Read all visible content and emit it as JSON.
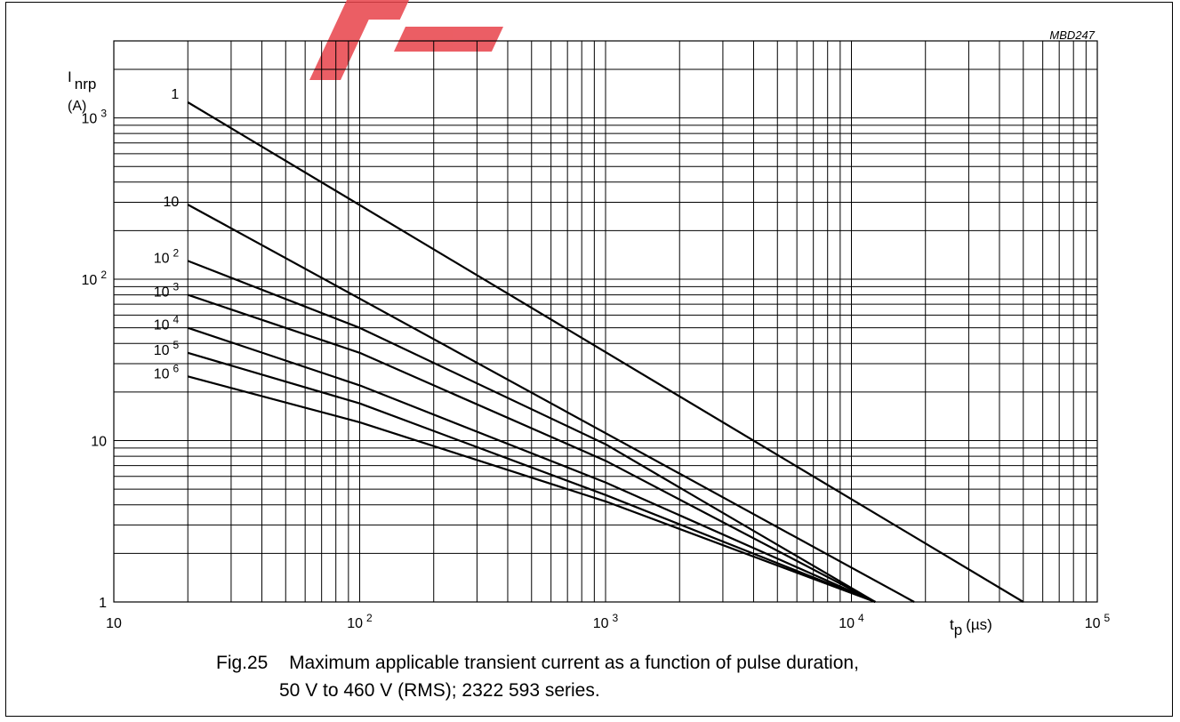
{
  "figure": {
    "code": "MBD247",
    "caption_number": "Fig.25",
    "caption_line1": "Maximum applicable transient current as a function of pulse duration,",
    "caption_line2": "50 V to 460 V (RMS); 2322 593 series."
  },
  "colors": {
    "grid": "#000000",
    "curves": "#000000",
    "watermark": "#e8424a"
  },
  "chart_data": {
    "type": "line",
    "x_scale": "log",
    "y_scale": "log",
    "xlim": [
      10,
      100000
    ],
    "ylim": [
      1,
      3000
    ],
    "grid": true,
    "ylabel": {
      "symbol": "I",
      "subscript": "nrp",
      "unit": "(A)"
    },
    "xlabel": {
      "symbol": "t",
      "subscript": "p",
      "unit": "(µs)"
    },
    "x_ticks": [
      {
        "value": 10,
        "base": "10",
        "exp": ""
      },
      {
        "value": 100,
        "base": "10",
        "exp": "2"
      },
      {
        "value": 1000,
        "base": "10",
        "exp": "3"
      },
      {
        "value": 10000,
        "base": "10",
        "exp": "4"
      },
      {
        "value": 100000,
        "base": "10",
        "exp": "5"
      }
    ],
    "y_ticks": [
      {
        "value": 1,
        "base": "1",
        "exp": ""
      },
      {
        "value": 10,
        "base": "10",
        "exp": ""
      },
      {
        "value": 100,
        "base": "10",
        "exp": "2"
      },
      {
        "value": 1000,
        "base": "10",
        "exp": "3"
      }
    ],
    "series": [
      {
        "name": "1",
        "label_base": "1",
        "label_exp": "",
        "points": [
          [
            20,
            1250
          ],
          [
            50000,
            1
          ]
        ]
      },
      {
        "name": "10",
        "label_base": "10",
        "label_exp": "",
        "points": [
          [
            20,
            290
          ],
          [
            18000,
            1
          ]
        ]
      },
      {
        "name": "10^2",
        "label_base": "10",
        "label_exp": "2",
        "points": [
          [
            20,
            130
          ],
          [
            100,
            50
          ],
          [
            1000,
            9.5
          ],
          [
            12500,
            1
          ]
        ]
      },
      {
        "name": "10^3",
        "label_base": "10",
        "label_exp": "3",
        "points": [
          [
            20,
            80
          ],
          [
            100,
            35
          ],
          [
            1000,
            7.5
          ],
          [
            12500,
            1
          ]
        ]
      },
      {
        "name": "10^4",
        "label_base": "10",
        "label_exp": "4",
        "points": [
          [
            20,
            50
          ],
          [
            100,
            22
          ],
          [
            1000,
            5.5
          ],
          [
            12500,
            1
          ]
        ]
      },
      {
        "name": "10^5",
        "label_base": "10",
        "label_exp": "5",
        "points": [
          [
            20,
            35
          ],
          [
            100,
            17
          ],
          [
            1000,
            4.6
          ],
          [
            12500,
            1
          ]
        ]
      },
      {
        "name": "10^6",
        "label_base": "10",
        "label_exp": "6",
        "points": [
          [
            20,
            25
          ],
          [
            100,
            13
          ],
          [
            1000,
            4.2
          ],
          [
            12500,
            1
          ]
        ]
      }
    ]
  }
}
